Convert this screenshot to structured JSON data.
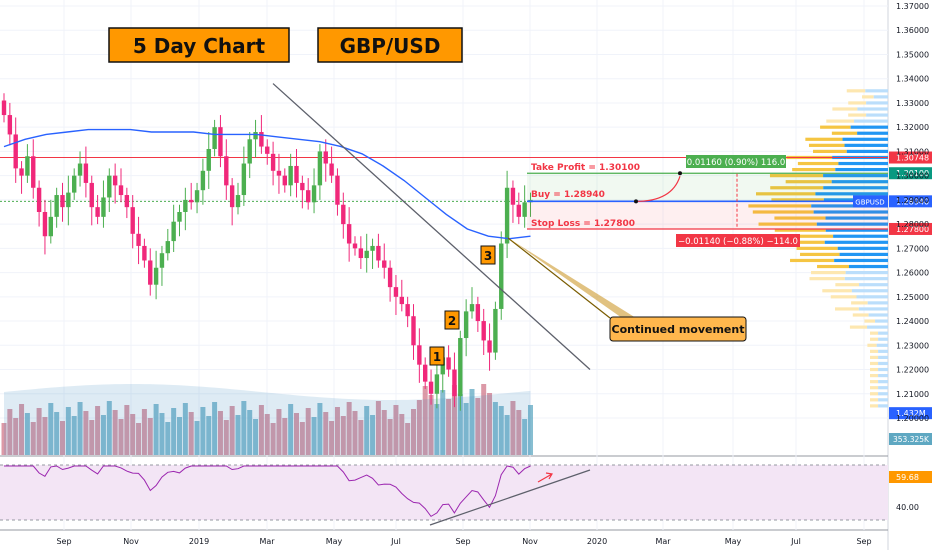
{
  "chart_data": {
    "type": "candlestick",
    "title_boxes": [
      "5 Day Chart",
      "GBP/USD"
    ],
    "symbol": "GBPUSD",
    "interval": "5 Day",
    "x_ticks": [
      "Sep",
      "Nov",
      "2019",
      "Mar",
      "May",
      "Jul",
      "Sep",
      "Nov",
      "2020",
      "Mar",
      "May",
      "Jul",
      "Sep"
    ],
    "y_ticks": [
      "1.37000",
      "1.36000",
      "1.35000",
      "1.34000",
      "1.33000",
      "1.32000",
      "1.31000",
      "1.30000",
      "1.29000",
      "1.28000",
      "1.27000",
      "1.26000",
      "1.25000",
      "1.24000",
      "1.23000",
      "1.22000",
      "1.21000",
      "1.20000"
    ],
    "ylim": [
      1.195,
      1.375
    ],
    "candles_close_approx": [
      1.325,
      1.317,
      1.303,
      1.3,
      1.308,
      1.295,
      1.285,
      1.275,
      1.283,
      1.292,
      1.287,
      1.293,
      1.3,
      1.305,
      1.297,
      1.287,
      1.283,
      1.291,
      1.3,
      1.296,
      1.292,
      1.287,
      1.276,
      1.271,
      1.265,
      1.255,
      1.262,
      1.268,
      1.273,
      1.281,
      1.285,
      1.29,
      1.289,
      1.294,
      1.302,
      1.311,
      1.32,
      1.308,
      1.296,
      1.287,
      1.292,
      1.305,
      1.315,
      1.318,
      1.312,
      1.309,
      1.302,
      1.3,
      1.296,
      1.304,
      1.297,
      1.294,
      1.289,
      1.296,
      1.31,
      1.305,
      1.3,
      1.288,
      1.28,
      1.272,
      1.27,
      1.266,
      1.269,
      1.271,
      1.265,
      1.262,
      1.254,
      1.25,
      1.247,
      1.242,
      1.23,
      1.222,
      1.215,
      1.21,
      1.218,
      1.225,
      1.22,
      1.209,
      1.233,
      1.244,
      1.247,
      1.24,
      1.232,
      1.227,
      1.245,
      1.272,
      1.295,
      1.288,
      1.283,
      1.289,
      1.29
    ],
    "moving_average": {
      "color": "#2962ff",
      "values_approx": [
        1.312,
        1.315,
        1.317,
        1.318,
        1.319,
        1.319,
        1.319,
        1.318,
        1.318,
        1.318,
        1.317,
        1.317,
        1.317,
        1.316,
        1.315,
        1.314,
        1.312,
        1.309,
        1.304,
        1.298,
        1.291,
        1.284,
        1.278,
        1.275,
        1.274,
        1.275
      ]
    },
    "trendline": {
      "from": {
        "x_index": 63,
        "price": 1.338
      },
      "to": {
        "x_index": 100,
        "price": 1.22
      }
    },
    "horizontal_levels": [
      {
        "label": "Take Profit = 1.30100",
        "price": 1.301,
        "color": "#089981"
      },
      {
        "label": "Buy = 1.28940",
        "price": 1.2894,
        "color": "#2962ff"
      },
      {
        "label": "Stop Loss = 1.27800",
        "price": 1.278,
        "color": "#f23645"
      },
      {
        "label": "",
        "price": 1.30748,
        "color": "#f23645"
      }
    ],
    "position_boxes": {
      "profit_label": "0.01160 (0.90%) 116.0",
      "loss_label": "−0.01140 (−0.88%) −114.0"
    },
    "price_badges": [
      {
        "text": "1.30748",
        "price": 1.30748,
        "bg": "#f23645"
      },
      {
        "text": "1.30100",
        "price": 1.301,
        "bg": "#089981"
      },
      {
        "text": "1.28940",
        "price": 1.2894,
        "bg": "#2962ff"
      },
      {
        "text": "1.27800",
        "price": 1.278,
        "bg": "#f23645"
      },
      {
        "text": "1.432M",
        "price": 1.202,
        "bg": "#2962ff"
      }
    ],
    "symbol_badge": "GBPUSD",
    "volume_badge": "353.325K",
    "wave_labels": [
      "1",
      "2",
      "3"
    ],
    "annotation": "Continued movement",
    "rsi": {
      "value_label": "59.68",
      "tick": "40.00"
    },
    "colors": {
      "up": "#4caf50",
      "down": "#f0287a",
      "title_box": "#ff9800",
      "rsi_line": "#9c27b0",
      "rsi_band": "#f3e5f5"
    }
  }
}
